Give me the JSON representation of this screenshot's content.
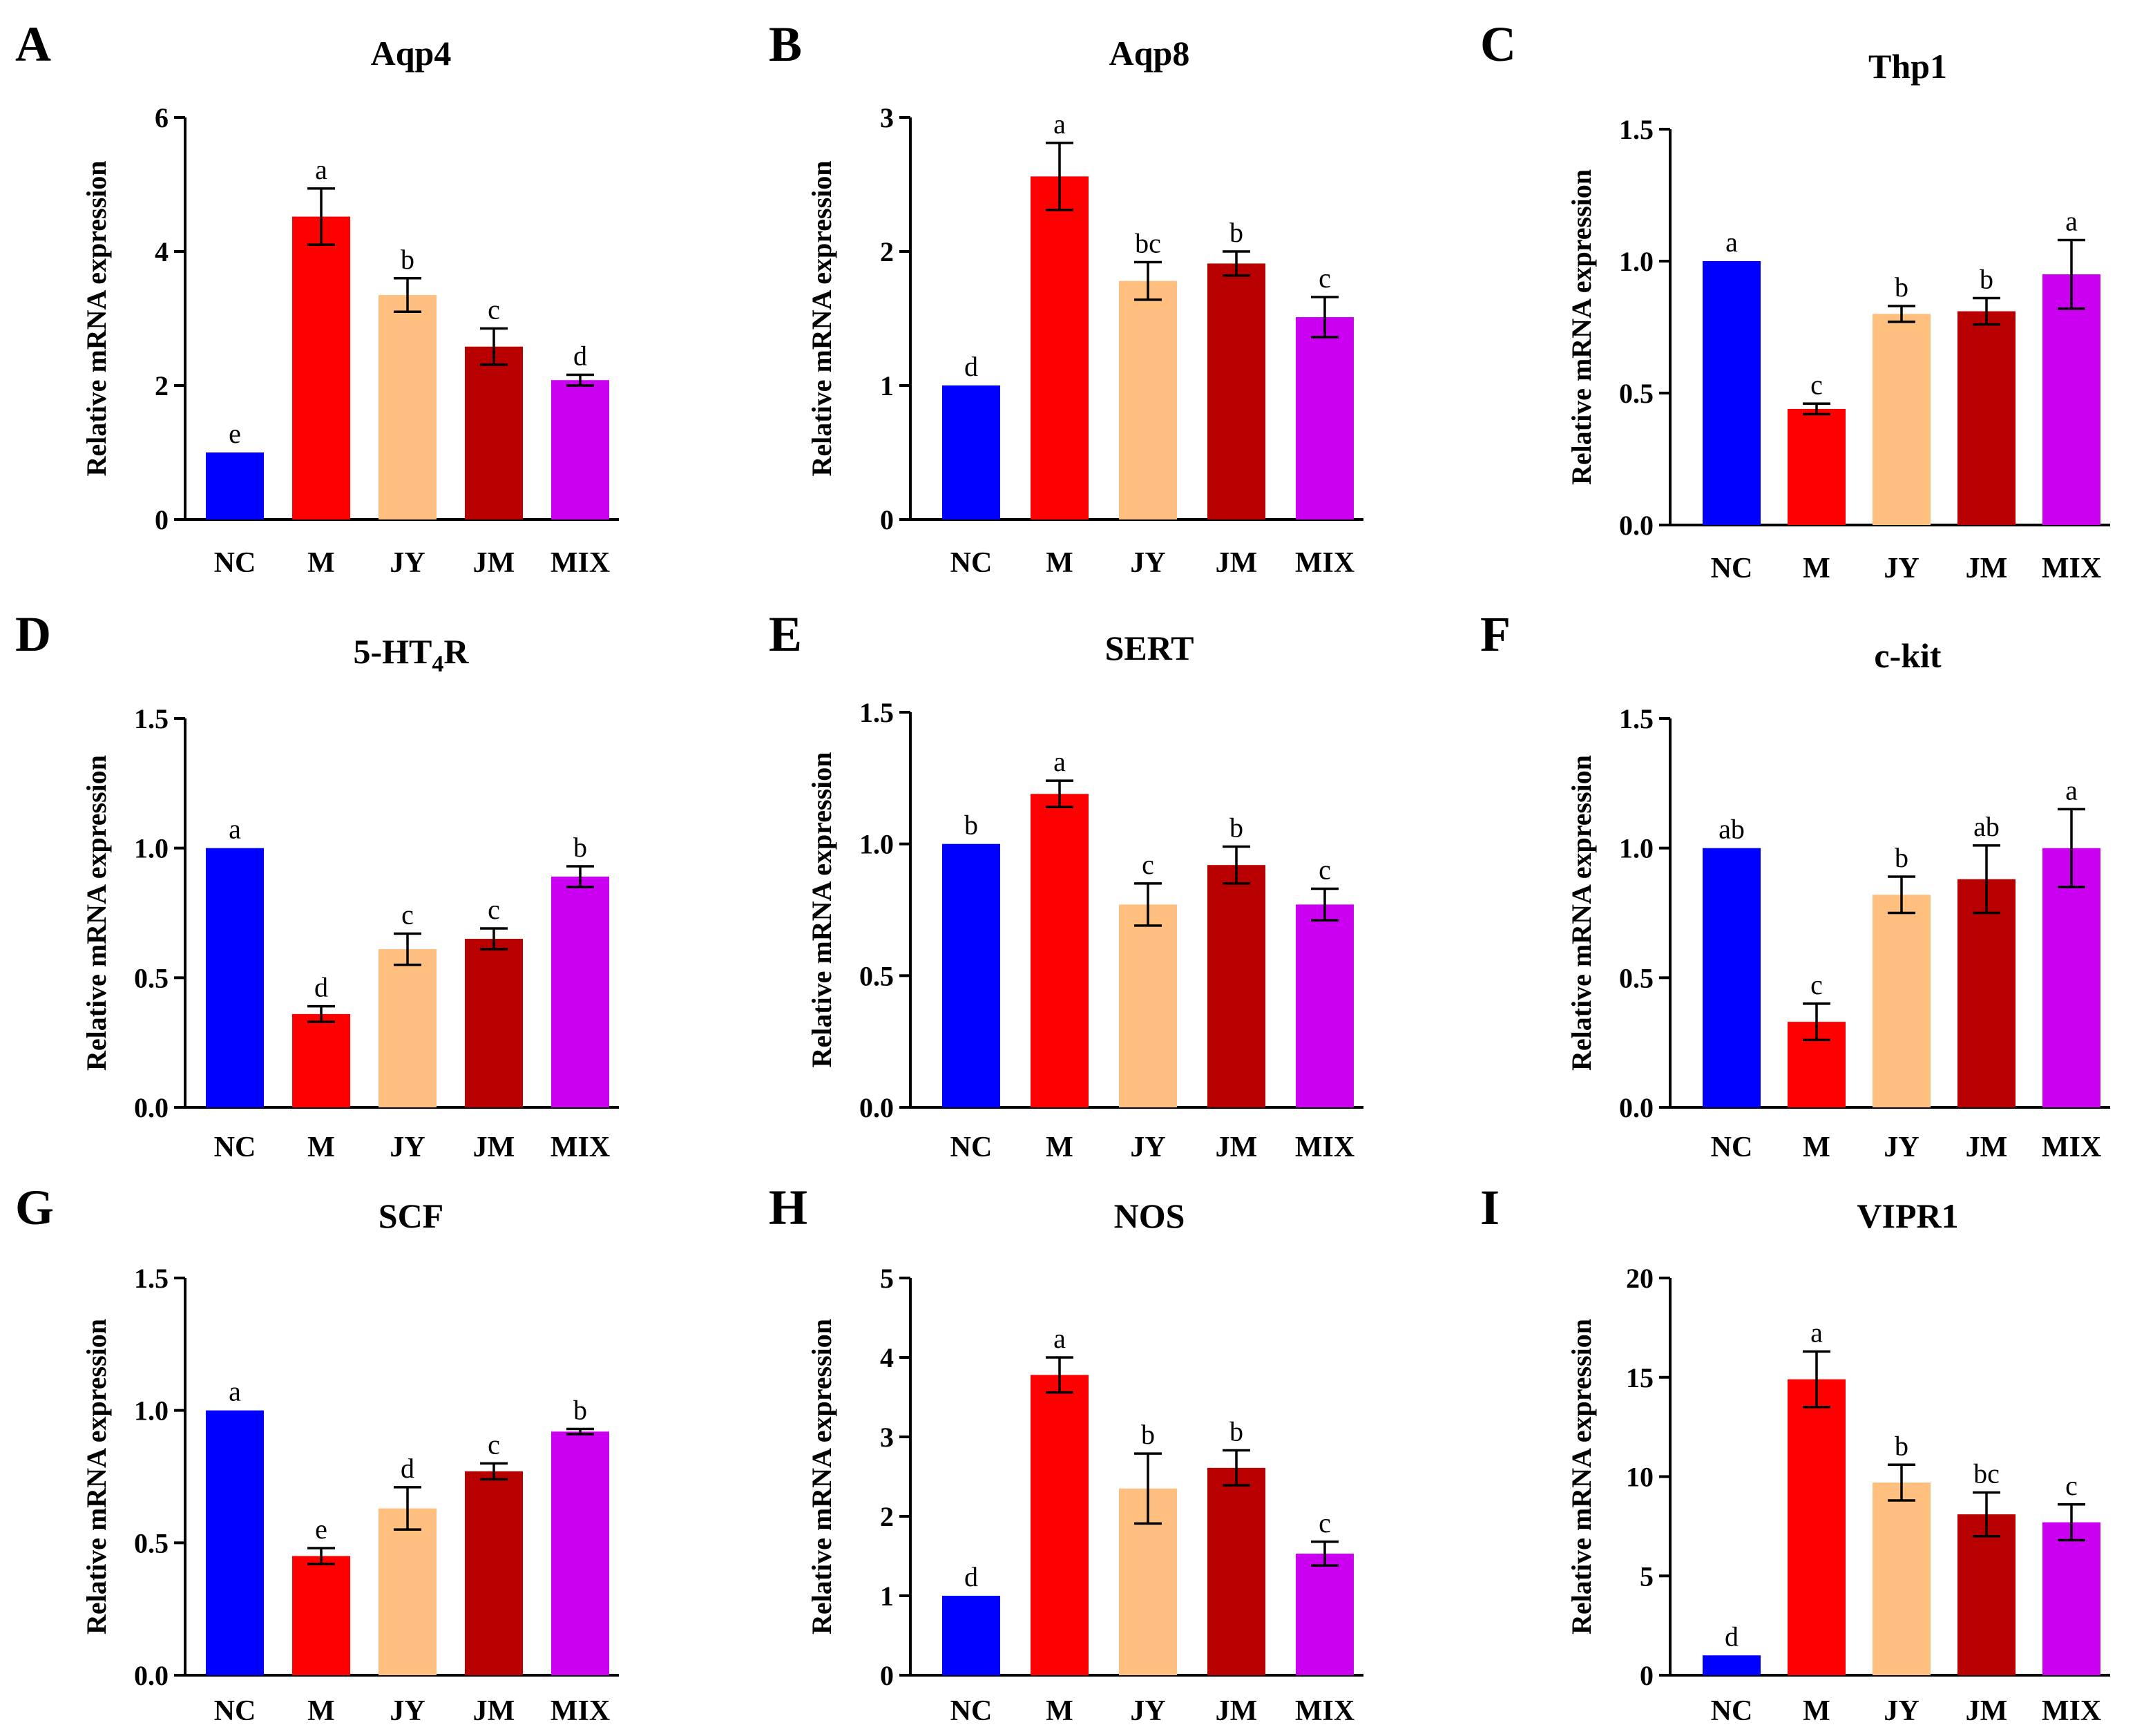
{
  "colors": {
    "NC": "#0000ff",
    "M": "#ff0000",
    "JY": "#ffc07f",
    "JM": "#b80000",
    "MIX": "#cc00f0"
  },
  "chart_data": [
    {
      "panel": "A",
      "type": "bar",
      "title": "Aqp4",
      "title_sub": "",
      "title_suffix": "",
      "xlabel": "",
      "ylabel": "Relative mRNA expression",
      "categories": [
        "NC",
        "M",
        "JY",
        "JM",
        "MIX"
      ],
      "values": [
        1.0,
        4.52,
        3.35,
        2.58,
        2.08
      ],
      "errors": [
        0,
        0.42,
        0.25,
        0.27,
        0.08
      ],
      "significance": [
        "e",
        "a",
        "b",
        "c",
        "d"
      ],
      "ylim": [
        0,
        6
      ],
      "yticks": [
        0,
        2,
        4,
        6
      ],
      "ytick_labels": [
        "0",
        "2",
        "4",
        "6"
      ]
    },
    {
      "panel": "B",
      "type": "bar",
      "title": "Aqp8",
      "title_sub": "",
      "title_suffix": "",
      "xlabel": "",
      "ylabel": "Relative mRNA expression",
      "categories": [
        "NC",
        "M",
        "JY",
        "JM",
        "MIX"
      ],
      "values": [
        1.0,
        2.56,
        1.78,
        1.91,
        1.51
      ],
      "errors": [
        0,
        0.25,
        0.14,
        0.09,
        0.15
      ],
      "significance": [
        "d",
        "a",
        "bc",
        "b",
        "c"
      ],
      "ylim": [
        0,
        3
      ],
      "yticks": [
        0,
        1,
        2,
        3
      ],
      "ytick_labels": [
        "0",
        "1",
        "2",
        "3"
      ]
    },
    {
      "panel": "C",
      "type": "bar",
      "title": "Thp1",
      "title_sub": "",
      "title_suffix": "",
      "xlabel": "",
      "ylabel": "Relative mRNA expression",
      "categories": [
        "NC",
        "M",
        "JY",
        "JM",
        "MIX"
      ],
      "values": [
        1.0,
        0.44,
        0.8,
        0.81,
        0.95
      ],
      "errors": [
        0,
        0.02,
        0.03,
        0.05,
        0.13
      ],
      "significance": [
        "a",
        "c",
        "b",
        "b",
        "a"
      ],
      "ylim": [
        0,
        1.5
      ],
      "yticks": [
        0,
        0.5,
        1.0,
        1.5
      ],
      "ytick_labels": [
        "0.0",
        "0.5",
        "1.0",
        "1.5"
      ]
    },
    {
      "panel": "D",
      "type": "bar",
      "title": "5-HT",
      "title_sub": "4",
      "title_suffix": "R",
      "xlabel": "",
      "ylabel": "Relative mRNA expression",
      "categories": [
        "NC",
        "M",
        "JY",
        "JM",
        "MIX"
      ],
      "values": [
        1.0,
        0.36,
        0.61,
        0.65,
        0.89
      ],
      "errors": [
        0,
        0.03,
        0.06,
        0.04,
        0.04
      ],
      "significance": [
        "a",
        "d",
        "c",
        "c",
        "b"
      ],
      "ylim": [
        0,
        1.5
      ],
      "yticks": [
        0,
        0.5,
        1.0,
        1.5
      ],
      "ytick_labels": [
        "0.0",
        "0.5",
        "1.0",
        "1.5"
      ]
    },
    {
      "panel": "E",
      "type": "bar",
      "title": "SERT",
      "title_sub": "",
      "title_suffix": "",
      "xlabel": "",
      "ylabel": "Relative mRNA expression",
      "categories": [
        "NC",
        "M",
        "JY",
        "JM",
        "MIX"
      ],
      "values": [
        1.0,
        1.19,
        0.77,
        0.92,
        0.77
      ],
      "errors": [
        0,
        0.05,
        0.08,
        0.07,
        0.06
      ],
      "significance": [
        "b",
        "a",
        "c",
        "b",
        "c"
      ],
      "ylim": [
        0,
        1.5
      ],
      "yticks": [
        0,
        0.5,
        1.0,
        1.5
      ],
      "ytick_labels": [
        "0.0",
        "0.5",
        "1.0",
        "1.5"
      ]
    },
    {
      "panel": "F",
      "type": "bar",
      "title": "c-kit",
      "title_sub": "",
      "title_suffix": "",
      "xlabel": "",
      "ylabel": "Relative mRNA expression",
      "categories": [
        "NC",
        "M",
        "JY",
        "JM",
        "MIX"
      ],
      "values": [
        1.0,
        0.33,
        0.82,
        0.88,
        1.0
      ],
      "errors": [
        0,
        0.07,
        0.07,
        0.13,
        0.15
      ],
      "significance": [
        "ab",
        "c",
        "b",
        "ab",
        "a"
      ],
      "ylim": [
        0,
        1.5
      ],
      "yticks": [
        0,
        0.5,
        1.0,
        1.5
      ],
      "ytick_labels": [
        "0.0",
        "0.5",
        "1.0",
        "1.5"
      ]
    },
    {
      "panel": "G",
      "type": "bar",
      "title": "SCF",
      "title_sub": "",
      "title_suffix": "",
      "xlabel": "",
      "ylabel": "Relative mRNA expression",
      "categories": [
        "NC",
        "M",
        "JY",
        "JM",
        "MIX"
      ],
      "values": [
        1.0,
        0.45,
        0.63,
        0.77,
        0.92
      ],
      "errors": [
        0,
        0.03,
        0.08,
        0.03,
        0.01
      ],
      "significance": [
        "a",
        "e",
        "d",
        "c",
        "b"
      ],
      "ylim": [
        0,
        1.5
      ],
      "yticks": [
        0,
        0.5,
        1.0,
        1.5
      ],
      "ytick_labels": [
        "0.0",
        "0.5",
        "1.0",
        "1.5"
      ]
    },
    {
      "panel": "H",
      "type": "bar",
      "title": "NOS",
      "title_sub": "",
      "title_suffix": "",
      "xlabel": "",
      "ylabel": "Relative mRNA expression",
      "categories": [
        "NC",
        "M",
        "JY",
        "JM",
        "MIX"
      ],
      "values": [
        1.0,
        3.78,
        2.35,
        2.61,
        1.53
      ],
      "errors": [
        0,
        0.22,
        0.44,
        0.22,
        0.15
      ],
      "significance": [
        "d",
        "a",
        "b",
        "b",
        "c"
      ],
      "ylim": [
        0,
        5
      ],
      "yticks": [
        0,
        1,
        2,
        3,
        4,
        5
      ],
      "ytick_labels": [
        "0",
        "1",
        "2",
        "3",
        "4",
        "5"
      ]
    },
    {
      "panel": "I",
      "type": "bar",
      "title": "VIPR1",
      "title_sub": "",
      "title_suffix": "",
      "xlabel": "",
      "ylabel": "Relative mRNA expression",
      "categories": [
        "NC",
        "M",
        "JY",
        "JM",
        "MIX"
      ],
      "values": [
        1.0,
        14.9,
        9.7,
        8.1,
        7.7
      ],
      "errors": [
        0,
        1.4,
        0.9,
        1.1,
        0.9
      ],
      "significance": [
        "d",
        "a",
        "b",
        "bc",
        "c"
      ],
      "ylim": [
        0,
        20
      ],
      "yticks": [
        0,
        5,
        10,
        15,
        20
      ],
      "ytick_labels": [
        "0",
        "5",
        "10",
        "15",
        "20"
      ]
    }
  ]
}
